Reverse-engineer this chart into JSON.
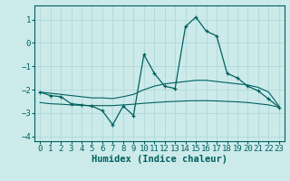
{
  "xlabel": "Humidex (Indice chaleur)",
  "bg_color": "#cceaea",
  "grid_color": "#b0d8d8",
  "line_color": "#006060",
  "xlim": [
    -0.5,
    23.5
  ],
  "ylim": [
    -4.2,
    1.6
  ],
  "yticks": [
    -4,
    -3,
    -2,
    -1,
    0,
    1
  ],
  "xticks": [
    0,
    1,
    2,
    3,
    4,
    5,
    6,
    7,
    8,
    9,
    10,
    11,
    12,
    13,
    14,
    15,
    16,
    17,
    18,
    19,
    20,
    21,
    22,
    23
  ],
  "series1_x": [
    0,
    1,
    2,
    3,
    4,
    5,
    6,
    7,
    8,
    9,
    10,
    11,
    12,
    13,
    14,
    15,
    16,
    17,
    18,
    19,
    20,
    21,
    22,
    23
  ],
  "series1_y": [
    -2.1,
    -2.25,
    -2.3,
    -2.6,
    -2.65,
    -2.7,
    -2.9,
    -3.5,
    -2.7,
    -3.1,
    -0.5,
    -1.3,
    -1.85,
    -1.95,
    0.7,
    1.1,
    0.5,
    0.3,
    -1.3,
    -1.5,
    -1.85,
    -2.05,
    -2.4,
    -2.75
  ],
  "series2_x": [
    0,
    1,
    2,
    3,
    4,
    5,
    6,
    7,
    8,
    9,
    10,
    11,
    12,
    13,
    14,
    15,
    16,
    17,
    18,
    19,
    20,
    21,
    22,
    23
  ],
  "series2_y": [
    -2.1,
    -2.15,
    -2.2,
    -2.25,
    -2.3,
    -2.35,
    -2.35,
    -2.38,
    -2.3,
    -2.2,
    -2.0,
    -1.85,
    -1.75,
    -1.7,
    -1.65,
    -1.6,
    -1.6,
    -1.65,
    -1.7,
    -1.75,
    -1.8,
    -1.9,
    -2.1,
    -2.7
  ],
  "series3_x": [
    0,
    1,
    2,
    3,
    4,
    5,
    6,
    7,
    8,
    9,
    10,
    11,
    12,
    13,
    14,
    15,
    16,
    17,
    18,
    19,
    20,
    21,
    22,
    23
  ],
  "series3_y": [
    -2.55,
    -2.6,
    -2.62,
    -2.65,
    -2.67,
    -2.68,
    -2.68,
    -2.68,
    -2.65,
    -2.62,
    -2.58,
    -2.55,
    -2.52,
    -2.5,
    -2.48,
    -2.47,
    -2.47,
    -2.48,
    -2.5,
    -2.52,
    -2.55,
    -2.6,
    -2.65,
    -2.75
  ],
  "font_family": "monospace",
  "tick_fontsize": 6.5,
  "label_fontsize": 7.5
}
